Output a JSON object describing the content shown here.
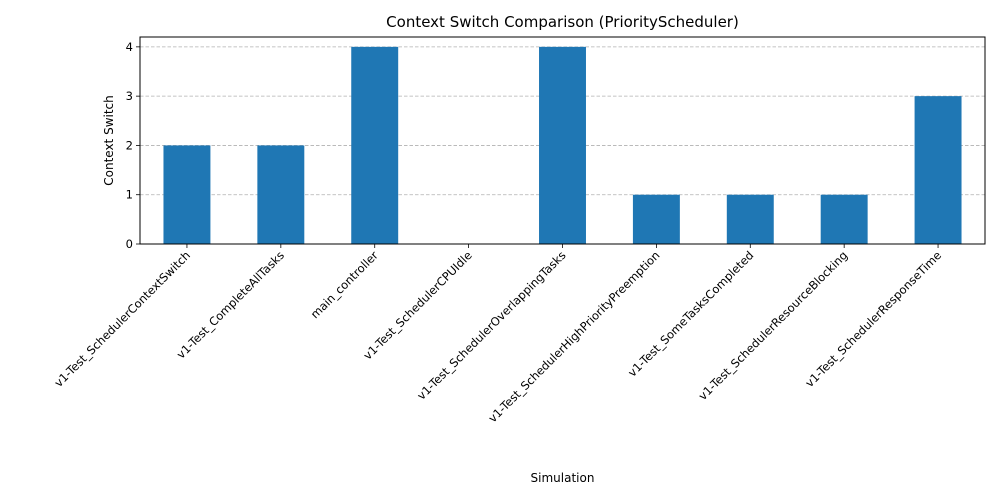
{
  "chart_data": {
    "type": "bar",
    "title": "Context Switch Comparison (PriorityScheduler)",
    "xlabel": "Simulation",
    "ylabel": "Context Switch",
    "categories": [
      "v1-Test_SchedulerContextSwitch",
      "v1-Test_CompleteAllTasks",
      "main_controller",
      "v1-Test_SchedulerCPUIdle",
      "v1-Test_SchedulerOverlappingTasks",
      "v1-Test_SchedulerHighPriorityPreemption",
      "v1-Test_SomeTasksCompleted",
      "v1-Test_SchedulerResourceBlocking",
      "v1-Test_SchedulerResponseTime"
    ],
    "values": [
      2,
      2,
      4,
      0,
      4,
      1,
      1,
      1,
      3
    ],
    "yticks": [
      0,
      1,
      2,
      3,
      4
    ],
    "ylim": [
      0,
      4.2
    ],
    "grid": "horizontal dashed",
    "legend": "none",
    "bar_color": "#1f77b4",
    "grid_color": "#b0b0b0"
  }
}
